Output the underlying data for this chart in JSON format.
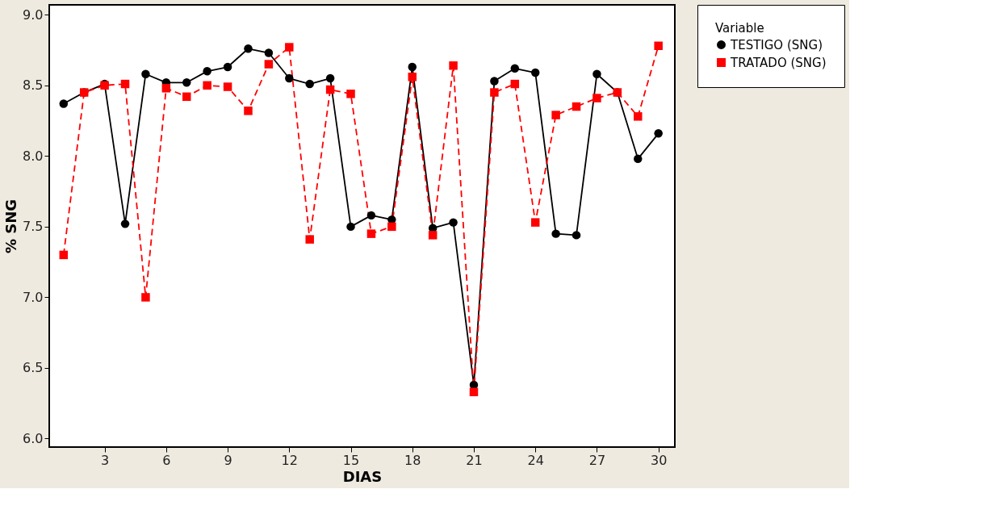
{
  "chart_data": {
    "type": "line",
    "xlabel": "DIAS",
    "ylabel": "% SNG",
    "legend_title": "Variable",
    "legend": "right",
    "grid": false,
    "x": [
      1,
      2,
      3,
      4,
      5,
      6,
      7,
      8,
      9,
      10,
      11,
      12,
      13,
      14,
      15,
      16,
      17,
      18,
      19,
      20,
      21,
      22,
      23,
      24,
      25,
      26,
      27,
      28,
      29,
      30
    ],
    "xlim": [
      0.3,
      30.8
    ],
    "xticks": [
      3,
      6,
      9,
      12,
      15,
      18,
      21,
      24,
      27,
      30
    ],
    "ylim": [
      5.94,
      9.07
    ],
    "yticks": [
      {
        "value": 6,
        "label": "6.0"
      },
      6.5,
      {
        "value": 7,
        "label": "7.0"
      },
      7.5,
      {
        "value": 8,
        "label": "8.0"
      },
      8.5,
      {
        "value": 9,
        "label": "9.0"
      }
    ],
    "series": [
      {
        "name": "TESTIGO (SNG)",
        "color": "#000000",
        "marker": "circle",
        "line_style": "solid",
        "values": [
          8.37,
          8.45,
          8.51,
          7.52,
          8.58,
          8.52,
          8.52,
          8.6,
          8.63,
          8.76,
          8.73,
          8.55,
          8.51,
          8.55,
          7.5,
          7.58,
          7.55,
          8.63,
          7.49,
          7.53,
          6.38,
          8.53,
          8.62,
          8.59,
          7.45,
          7.44,
          8.58,
          8.45,
          7.98,
          8.16
        ]
      },
      {
        "name": "TRATADO (SNG)",
        "color": "#ff0000",
        "marker": "square",
        "line_style": "dashed",
        "values": [
          7.3,
          8.45,
          8.5,
          8.51,
          7.0,
          8.48,
          8.42,
          8.5,
          8.49,
          8.32,
          8.65,
          8.77,
          7.41,
          8.47,
          8.44,
          7.45,
          7.5,
          8.56,
          7.44,
          8.64,
          6.33,
          8.45,
          8.51,
          7.53,
          8.29,
          8.35,
          8.41,
          8.45,
          8.28,
          8.78
        ]
      }
    ]
  }
}
